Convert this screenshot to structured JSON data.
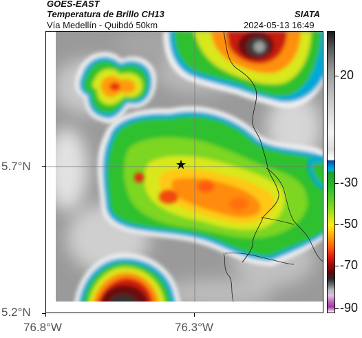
{
  "header": {
    "satellite": "GOES-EAST",
    "product": "Temperatura de Brillo CH13",
    "route": "Vía Medellín - Quibdó 50km",
    "org": "SIATA",
    "datetime": "2024-05-13 16:49"
  },
  "map": {
    "y_ticks": [
      "5.7°N",
      "5.2°N"
    ],
    "x_ticks": [
      "76.8°W",
      "76.3°W"
    ],
    "marker": "star-marker"
  },
  "colorbar": {
    "labels": [
      "20",
      "-30",
      "-50",
      "-70",
      "-90"
    ],
    "unit_scale": "brightness-temperature"
  },
  "colors": {
    "frame": "#000000",
    "axis_text": "#555555"
  }
}
